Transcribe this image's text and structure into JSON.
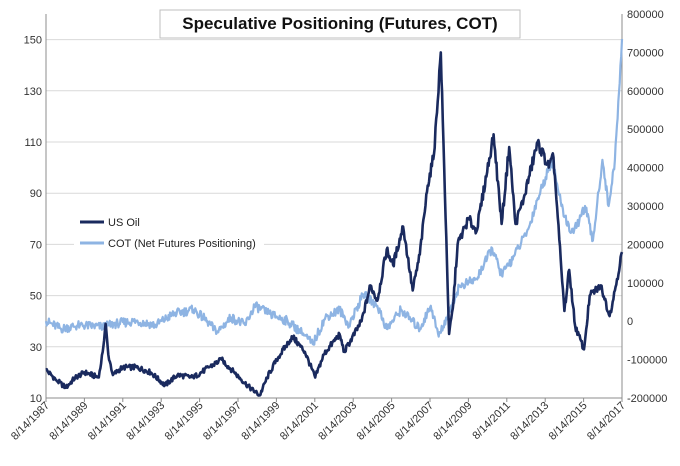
{
  "chart_data": {
    "type": "line",
    "title": "Speculative Positioning (Futures, COT)",
    "xlabel": "",
    "ylabel": "",
    "x_range": [
      "1987-08-14",
      "2018-02-15"
    ],
    "x_tick_labels": [
      "8/14/1987",
      "8/14/1989",
      "8/14/1991",
      "8/14/1993",
      "8/14/1995",
      "8/14/1997",
      "8/14/1999",
      "8/14/2001",
      "8/14/2003",
      "8/14/2005",
      "8/14/2007",
      "8/14/2009",
      "8/14/2011",
      "8/14/2013",
      "8/14/2015",
      "8/14/2017"
    ],
    "y_left": {
      "min": 10,
      "max": 160,
      "ticks": [
        10,
        30,
        50,
        70,
        90,
        110,
        130,
        150
      ]
    },
    "y_right": {
      "min": -200000,
      "max": 800000,
      "ticks": [
        -200000,
        -100000,
        0,
        100000,
        200000,
        300000,
        400000,
        500000,
        600000,
        700000,
        800000
      ],
      "tick_labels": [
        "-200000",
        "-100000",
        "0",
        "100000",
        "200000",
        "300000",
        "400000",
        "500000",
        "600000",
        "700000",
        "800000"
      ]
    },
    "grid": "horizontal",
    "legend_position": "middle-left",
    "series": [
      {
        "name": "US Oil",
        "axis": "left",
        "color": "#1a2a5e",
        "points": [
          [
            "1987-08-14",
            21
          ],
          [
            "1988-03-01",
            17
          ],
          [
            "1988-09-01",
            14
          ],
          [
            "1989-03-01",
            18
          ],
          [
            "1989-09-01",
            20
          ],
          [
            "1990-06-01",
            18
          ],
          [
            "1990-08-14",
            28
          ],
          [
            "1990-10-10",
            39
          ],
          [
            "1990-12-01",
            27
          ],
          [
            "1991-03-01",
            19
          ],
          [
            "1991-09-01",
            22
          ],
          [
            "1992-06-01",
            22
          ],
          [
            "1993-03-01",
            20
          ],
          [
            "1993-12-01",
            15
          ],
          [
            "1994-08-01",
            19
          ],
          [
            "1995-06-01",
            18
          ],
          [
            "1996-04-01",
            22
          ],
          [
            "1996-12-01",
            25
          ],
          [
            "1997-08-01",
            20
          ],
          [
            "1998-06-01",
            14
          ],
          [
            "1998-12-10",
            11
          ],
          [
            "1999-05-01",
            18
          ],
          [
            "1999-11-01",
            25
          ],
          [
            "2000-09-01",
            34
          ],
          [
            "2001-05-01",
            28
          ],
          [
            "2001-11-15",
            18
          ],
          [
            "2002-05-01",
            27
          ],
          [
            "2003-03-01",
            35
          ],
          [
            "2003-06-01",
            28
          ],
          [
            "2004-05-01",
            40
          ],
          [
            "2004-10-20",
            54
          ],
          [
            "2005-03-01",
            48
          ],
          [
            "2005-08-30",
            68
          ],
          [
            "2006-01-01",
            62
          ],
          [
            "2006-07-14",
            77
          ],
          [
            "2007-01-15",
            52
          ],
          [
            "2007-06-01",
            66
          ],
          [
            "2007-11-01",
            93
          ],
          [
            "2008-03-01",
            105
          ],
          [
            "2008-07-11",
            145
          ],
          [
            "2008-09-15",
            100
          ],
          [
            "2008-12-20",
            35
          ],
          [
            "2009-03-01",
            45
          ],
          [
            "2009-06-01",
            70
          ],
          [
            "2010-01-01",
            80
          ],
          [
            "2010-06-01",
            75
          ],
          [
            "2011-04-29",
            113
          ],
          [
            "2011-10-01",
            78
          ],
          [
            "2012-02-24",
            108
          ],
          [
            "2012-06-25",
            78
          ],
          [
            "2012-12-01",
            88
          ],
          [
            "2013-08-28",
            110
          ],
          [
            "2014-04-01",
            100
          ],
          [
            "2014-07-01",
            104
          ],
          [
            "2014-12-01",
            60
          ],
          [
            "2015-01-28",
            44
          ],
          [
            "2015-05-01",
            60
          ],
          [
            "2015-08-24",
            38
          ],
          [
            "2016-02-11",
            29
          ],
          [
            "2016-06-01",
            50
          ],
          [
            "2017-01-03",
            54
          ],
          [
            "2017-06-21",
            42
          ],
          [
            "2017-10-01",
            52
          ],
          [
            "2018-02-15",
            67
          ]
        ]
      },
      {
        "name": "COT (Net Futures Positioning)",
        "axis": "right",
        "color": "#8eb4e3",
        "points": [
          [
            "1987-08-14",
            0
          ],
          [
            "1988-06-01",
            -20000
          ],
          [
            "1989-06-01",
            -10000
          ],
          [
            "1990-08-14",
            -15000
          ],
          [
            "1991-06-01",
            -5000
          ],
          [
            "1992-06-01",
            0
          ],
          [
            "1993-06-01",
            -10000
          ],
          [
            "1994-06-01",
            20000
          ],
          [
            "1995-06-01",
            30000
          ],
          [
            "1996-03-01",
            0
          ],
          [
            "1996-09-01",
            -30000
          ],
          [
            "1997-06-01",
            10000
          ],
          [
            "1998-03-01",
            -10000
          ],
          [
            "1998-09-01",
            40000
          ],
          [
            "1999-06-01",
            20000
          ],
          [
            "2000-06-01",
            0
          ],
          [
            "2001-03-01",
            -30000
          ],
          [
            "2001-10-01",
            -60000
          ],
          [
            "2002-06-01",
            10000
          ],
          [
            "2003-03-01",
            30000
          ],
          [
            "2003-09-01",
            -10000
          ],
          [
            "2004-06-01",
            70000
          ],
          [
            "2005-03-01",
            40000
          ],
          [
            "2005-09-01",
            -20000
          ],
          [
            "2006-06-01",
            30000
          ],
          [
            "2007-06-01",
            -20000
          ],
          [
            "2008-01-01",
            40000
          ],
          [
            "2008-06-01",
            -40000
          ],
          [
            "2009-01-01",
            30000
          ],
          [
            "2009-07-01",
            90000
          ],
          [
            "2010-06-01",
            110000
          ],
          [
            "2011-04-01",
            190000
          ],
          [
            "2011-10-01",
            120000
          ],
          [
            "2012-06-01",
            170000
          ],
          [
            "2013-03-01",
            240000
          ],
          [
            "2013-09-01",
            320000
          ],
          [
            "2014-06-01",
            420000
          ],
          [
            "2014-12-01",
            300000
          ],
          [
            "2015-06-01",
            230000
          ],
          [
            "2015-10-01",
            250000
          ],
          [
            "2016-03-01",
            300000
          ],
          [
            "2016-08-01",
            210000
          ],
          [
            "2017-02-01",
            420000
          ],
          [
            "2017-06-01",
            300000
          ],
          [
            "2017-10-01",
            420000
          ],
          [
            "2018-01-01",
            620000
          ],
          [
            "2018-02-15",
            735000
          ]
        ]
      }
    ]
  }
}
